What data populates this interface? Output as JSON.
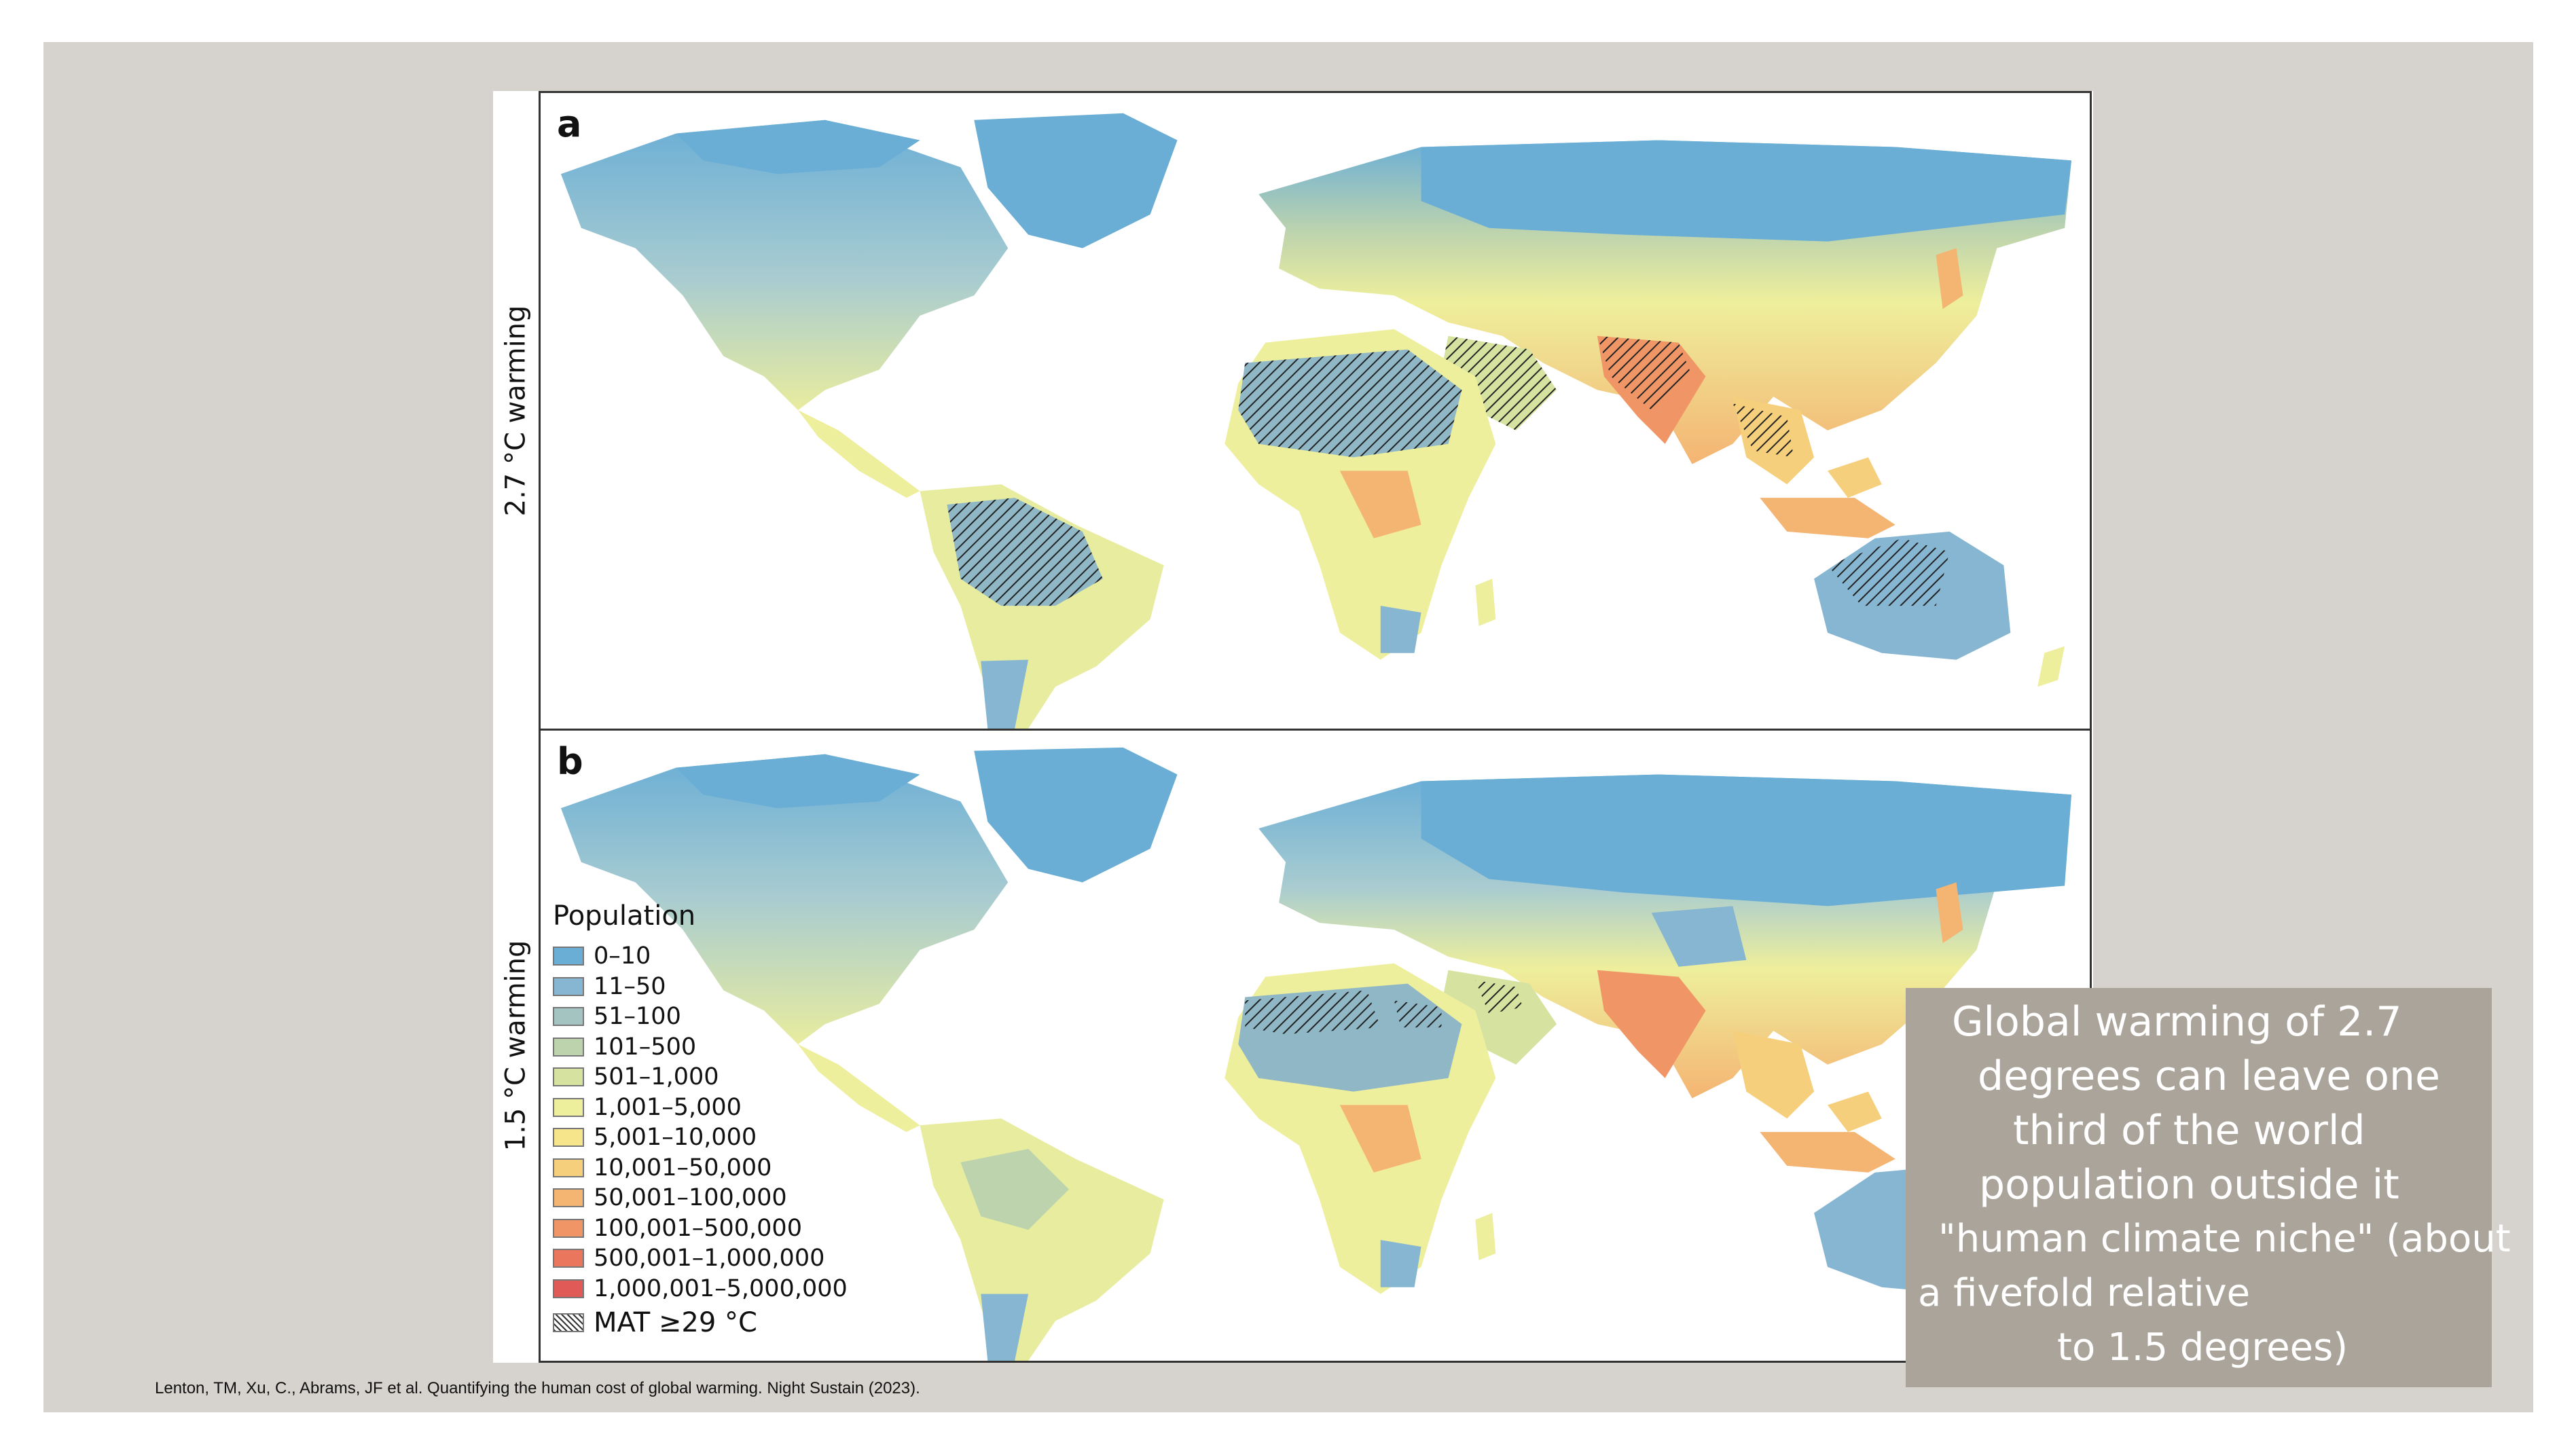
{
  "figure": {
    "panel_a": {
      "letter": "a",
      "side_label": "2.7 °C warming"
    },
    "panel_b": {
      "letter": "b",
      "side_label": "1.5 °C warming"
    }
  },
  "legend": {
    "title": "Population",
    "items": [
      {
        "label": "0–10",
        "color": "#6aaed6"
      },
      {
        "label": "11–50",
        "color": "#86b6d2"
      },
      {
        "label": "51–100",
        "color": "#a4c4c2"
      },
      {
        "label": "101–500",
        "color": "#bcd3ae"
      },
      {
        "label": "501–1,000",
        "color": "#d6e3a0"
      },
      {
        "label": "1,001–5,000",
        "color": "#eeef9c"
      },
      {
        "label": "5,001–10,000",
        "color": "#f6e58a"
      },
      {
        "label": "10,001–50,000",
        "color": "#f6cf7c"
      },
      {
        "label": "50,001–100,000",
        "color": "#f4b472"
      },
      {
        "label": "100,001–500,000",
        "color": "#ef9566"
      },
      {
        "label": "500,001–1,000,000",
        "color": "#e9765d"
      },
      {
        "label": "1,000,001–5,000,000",
        "color": "#e05a58"
      }
    ],
    "hatch_label": "MAT ≥29 °C"
  },
  "caption": {
    "lines": [
      "Global warming of 2.7",
      "degrees can leave one",
      "third of the world",
      "population outside it",
      "\"human climate niche\" (about",
      "a fivefold relative",
      "to 1.5 degrees)"
    ]
  },
  "citation": "Lenton, TM, Xu, C., Abrams, JF et al. Quantifying the human cost of global warming. Night Sustain (2023).",
  "colors": {
    "slide_background": "#d6d3cf",
    "caption_background": "#aba49a",
    "ocean": "#ffffff",
    "land_cold": "#6aaed6",
    "land_mid": "#eeef9c",
    "land_dense": "#ef9566"
  }
}
